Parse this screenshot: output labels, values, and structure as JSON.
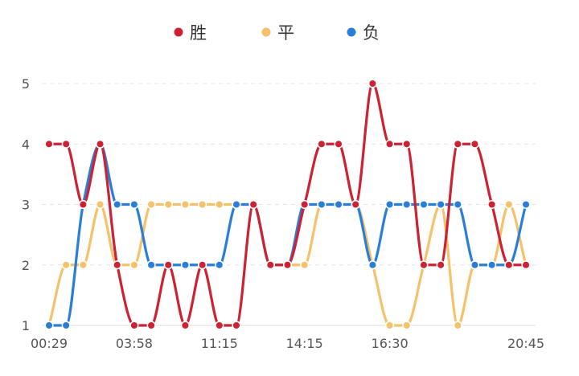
{
  "chart_data": {
    "type": "line",
    "smooth": true,
    "legend_position": "top-center",
    "x_tick_labels": [
      "00:29",
      "03:58",
      "11:15",
      "14:15",
      "16:30",
      "20:45"
    ],
    "x_tick_indices": [
      0,
      5,
      10,
      15,
      20,
      28
    ],
    "ylim": [
      1,
      5
    ],
    "y_ticks": [
      1,
      2,
      3,
      4,
      5
    ],
    "grid": "horizontal-dashed",
    "series": [
      {
        "name": "胜",
        "color": "#cc2233",
        "values": [
          4,
          4,
          3,
          4,
          2,
          1,
          1,
          2,
          1,
          2,
          1,
          1,
          3,
          2,
          2,
          3,
          4,
          4,
          3,
          5,
          4,
          4,
          2,
          2,
          4,
          4,
          3,
          2,
          2
        ]
      },
      {
        "name": "平",
        "color": "#f5c26b",
        "values": [
          1,
          2,
          2,
          3,
          2,
          2,
          3,
          3,
          3,
          3,
          3,
          3,
          3,
          2,
          2,
          2,
          3,
          3,
          3,
          2,
          1,
          1,
          2,
          3,
          1,
          2,
          2,
          3,
          2
        ]
      },
      {
        "name": "负",
        "color": "#2a7ed9",
        "values": [
          1,
          1,
          3,
          4,
          3,
          3,
          2,
          2,
          2,
          2,
          2,
          3,
          3,
          2,
          2,
          3,
          3,
          3,
          3,
          2,
          3,
          3,
          3,
          3,
          3,
          2,
          2,
          2,
          3
        ]
      }
    ]
  }
}
